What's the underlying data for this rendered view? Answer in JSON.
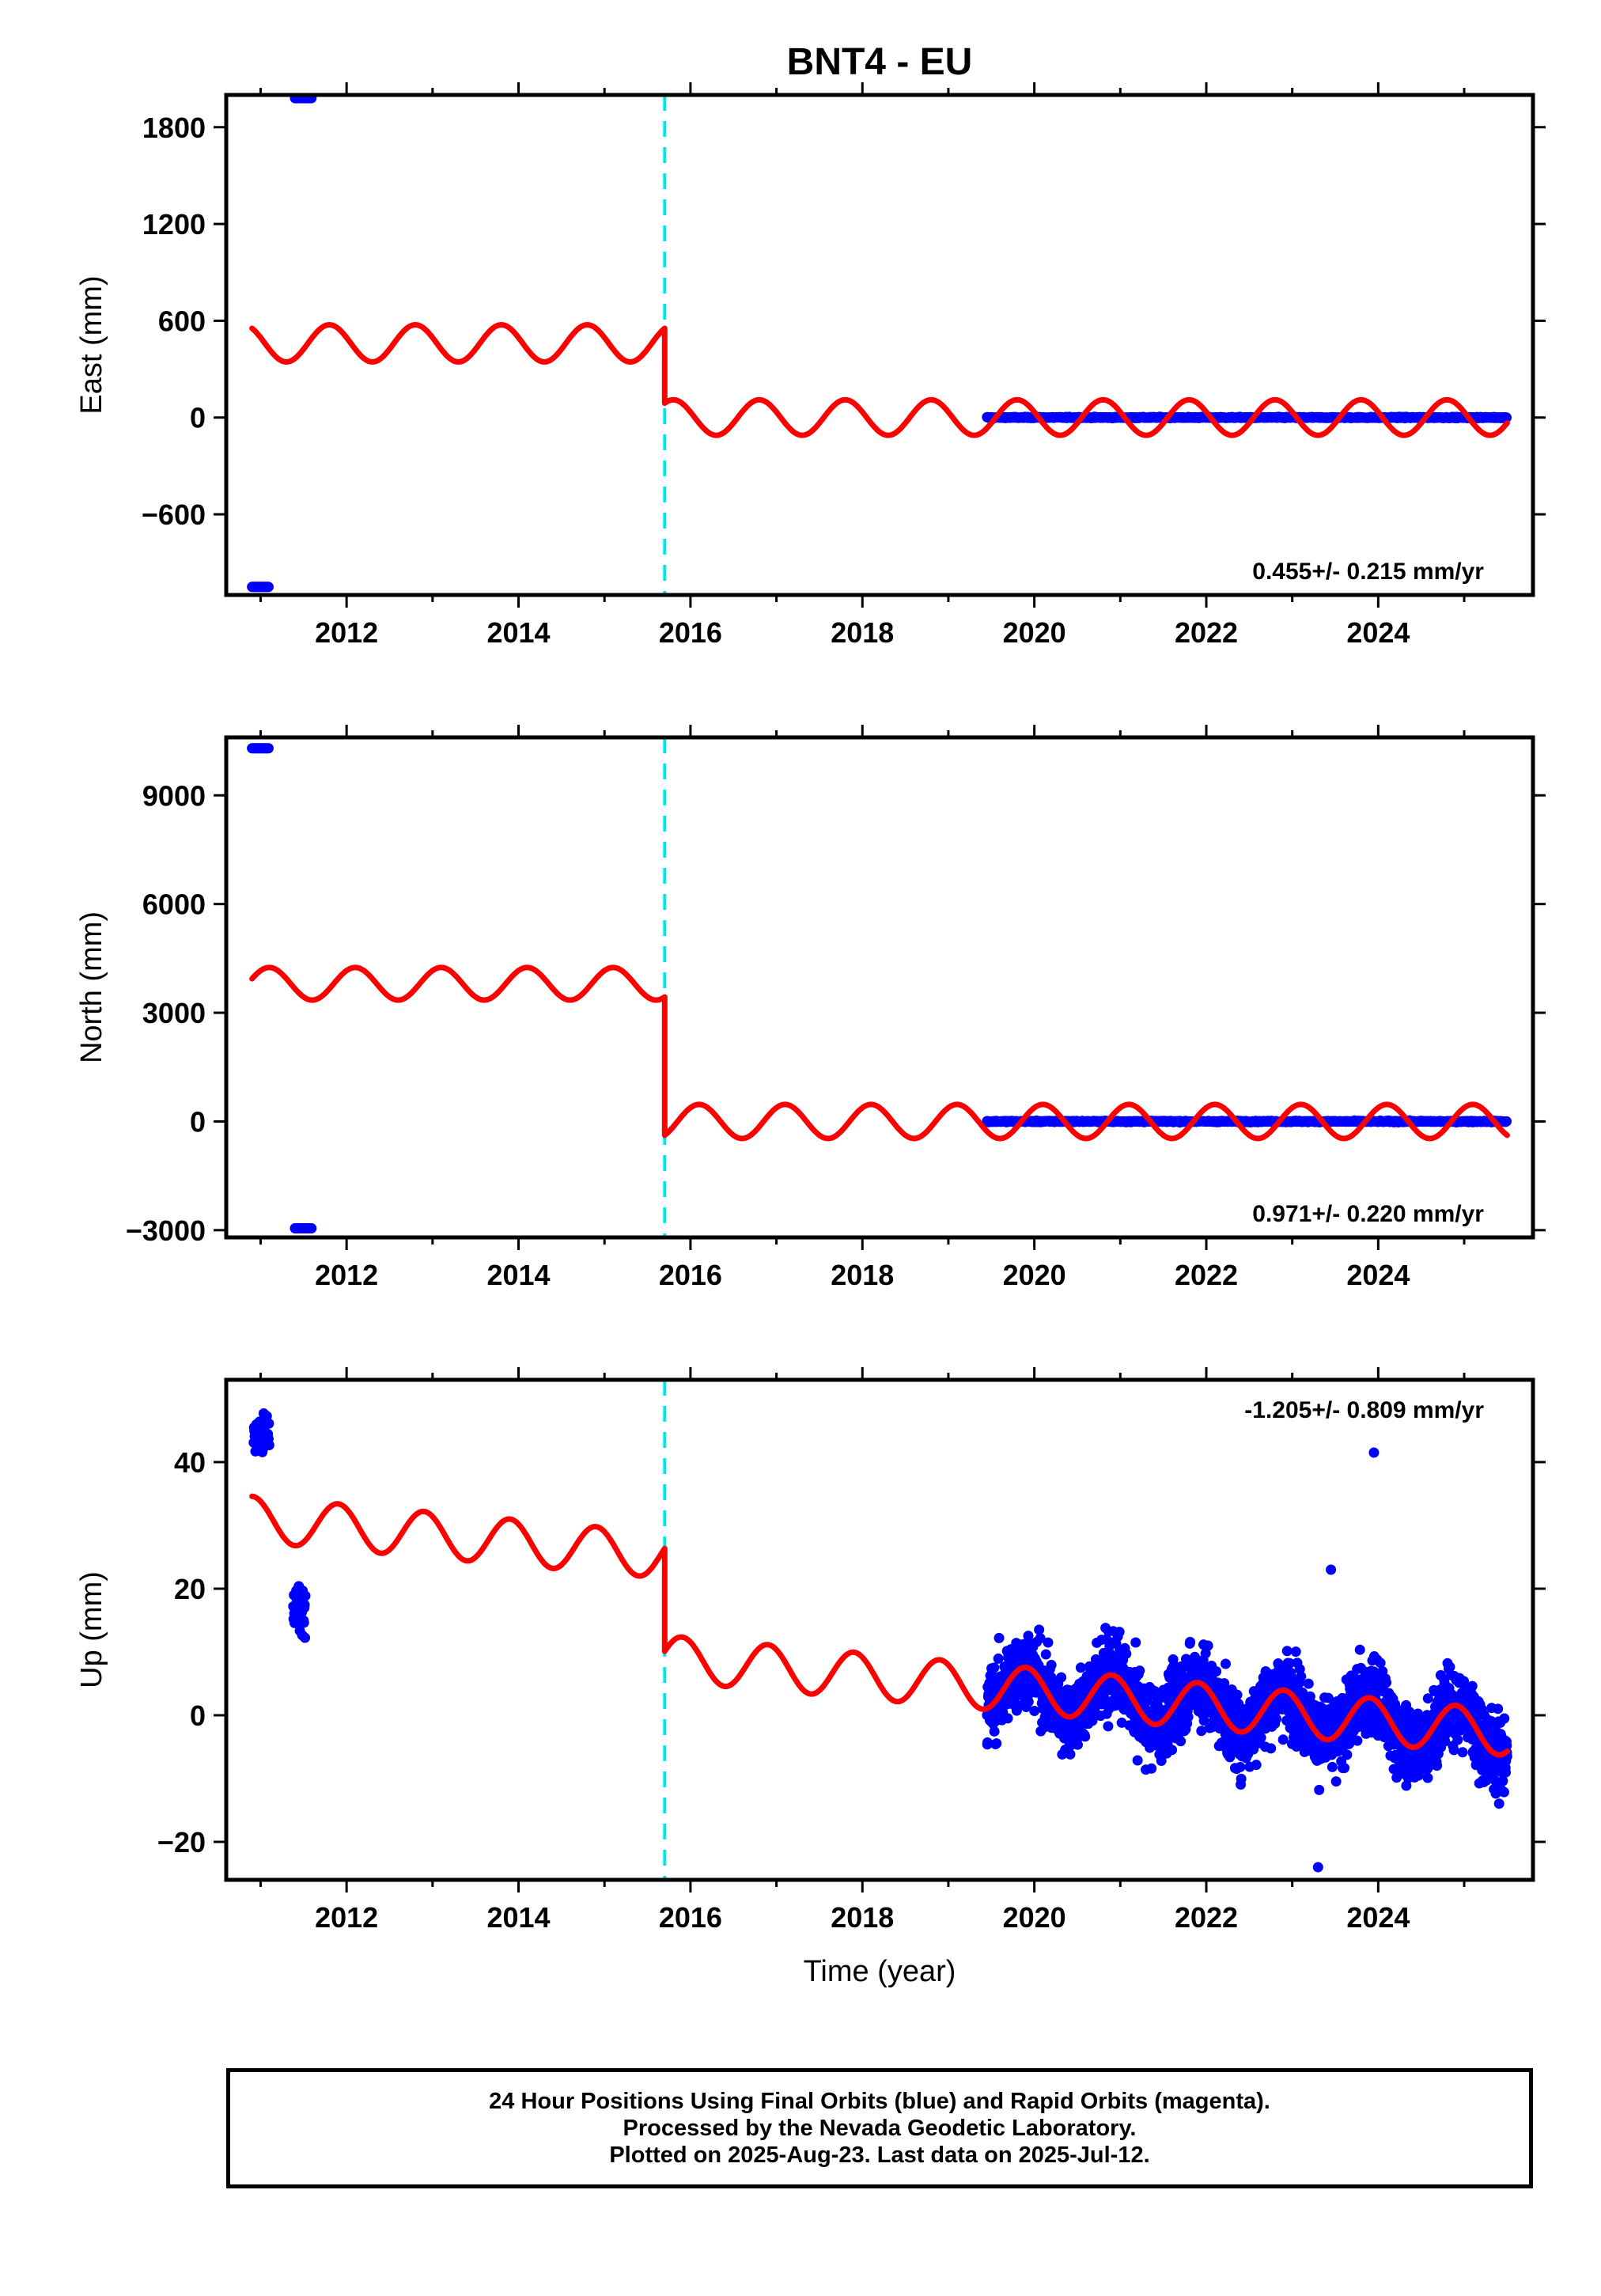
{
  "title": "BNT4 - EU",
  "x_axis_label": "Time (year)",
  "footer": {
    "lines": [
      "24 Hour Positions Using Final Orbits (blue) and Rapid Orbits (magenta).",
      "Processed by the Nevada Geodetic Laboratory.",
      "Plotted on 2025-Aug-23. Last data on 2025-Jul-12."
    ]
  },
  "colors": {
    "data_points": "#0000ff",
    "model_fit": "#ff0000",
    "offset_line": "#00e5ee",
    "frame": "#000000"
  },
  "chart_data": [
    {
      "type": "scatter",
      "ylabel": "East (mm)",
      "xlim": [
        2010.6,
        2025.8
      ],
      "ylim": [
        -1100,
        2000
      ],
      "x_ticks": [
        2012,
        2014,
        2016,
        2018,
        2020,
        2022,
        2024
      ],
      "y_ticks": [
        1800,
        1200,
        600,
        0,
        -600
      ],
      "y_tick_labels": [
        "1800",
        "1200",
        "600",
        "0",
        "−600"
      ],
      "rate_label": "0.455+/- 0.215 mm/yr",
      "rate_label_position": "bottom-right",
      "offset_epoch": 2015.7,
      "outliers": [
        {
          "x0": 2010.9,
          "x1": 2011.1,
          "y": -1050
        },
        {
          "x0": 2011.4,
          "x1": 2011.6,
          "y": 1980
        }
      ],
      "data_series": {
        "start": 2019.45,
        "end": 2025.5,
        "center": 0,
        "noise": 5
      },
      "model": {
        "segments": [
          {
            "start": 2010.9,
            "end": 2015.7,
            "base": 460,
            "amplitude": 115,
            "trend": 0
          },
          {
            "start": 2015.7,
            "end": 2025.5,
            "base": 0,
            "amplitude": 110,
            "trend": 0
          }
        ],
        "phase": 0.45
      }
    },
    {
      "type": "scatter",
      "ylabel": "North (mm)",
      "xlim": [
        2010.6,
        2025.8
      ],
      "ylim": [
        -3200,
        10600
      ],
      "x_ticks": [
        2012,
        2014,
        2016,
        2018,
        2020,
        2022,
        2024
      ],
      "y_ticks": [
        9000,
        6000,
        3000,
        0,
        -3000
      ],
      "y_tick_labels": [
        "9000",
        "6000",
        "3000",
        "0",
        "−3000"
      ],
      "rate_label": "0.971+/- 0.220 mm/yr",
      "rate_label_position": "bottom-right",
      "offset_epoch": 2015.7,
      "outliers": [
        {
          "x0": 2010.9,
          "x1": 2011.1,
          "y": 10300
        },
        {
          "x0": 2011.4,
          "x1": 2011.6,
          "y": -2950
        }
      ],
      "data_series": {
        "start": 2019.45,
        "end": 2025.5,
        "center": 0,
        "noise": 25
      },
      "model": {
        "segments": [
          {
            "start": 2010.9,
            "end": 2015.7,
            "base": 3800,
            "amplitude": 450,
            "trend": 0
          },
          {
            "start": 2015.7,
            "end": 2025.5,
            "base": 0,
            "amplitude": 470,
            "trend": 0
          }
        ],
        "phase": 0.15
      }
    },
    {
      "type": "scatter",
      "ylabel": "Up (mm)",
      "xlim": [
        2010.6,
        2025.8
      ],
      "ylim": [
        -26,
        53
      ],
      "x_ticks": [
        2012,
        2014,
        2016,
        2018,
        2020,
        2022,
        2024
      ],
      "y_ticks": [
        40,
        20,
        0,
        -20
      ],
      "y_tick_labels": [
        "40",
        "20",
        "0",
        "−20"
      ],
      "rate_label": "-1.205+/- 0.809 mm/yr",
      "rate_label_position": "top-right",
      "offset_epoch": 2015.7,
      "outlier_clusters": [
        {
          "x0": 2010.92,
          "x1": 2011.1,
          "y_center": 44,
          "spread": 4.5
        },
        {
          "x0": 2011.38,
          "x1": 2011.52,
          "y_center": 17,
          "spread": 5.5
        }
      ],
      "extra_points": [
        {
          "x": 2023.95,
          "y": 41.5
        },
        {
          "x": 2023.3,
          "y": -24
        },
        {
          "x": 2023.45,
          "y": 23
        }
      ],
      "data_series": {
        "start": 2019.45,
        "end": 2025.5,
        "noise": 4.5
      },
      "model": {
        "segments": [
          {
            "start": 2010.9,
            "end": 2015.7,
            "base": 31,
            "amplitude": 3.6,
            "trend": -1.2,
            "ref": 2010.9
          },
          {
            "start": 2015.7,
            "end": 2025.5,
            "base": 9,
            "amplitude": 3.6,
            "trend": -1.2,
            "ref": 2015.7
          }
        ],
        "phase": 0.35
      }
    }
  ]
}
